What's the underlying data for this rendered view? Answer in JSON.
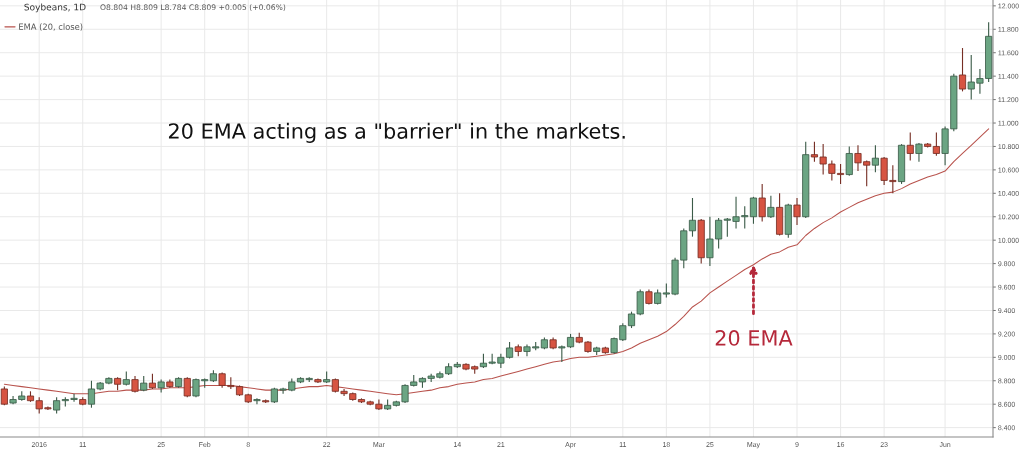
{
  "chart_data": {
    "type": "candlestick",
    "title": "Soybeans, 1D",
    "subtitle": "O8.804 H8.809 L8.784 C8.809 +0.005 (+0.06%)",
    "categories": [
      null,
      null,
      null,
      null,
      "2016",
      null,
      null,
      null,
      null,
      "11",
      null,
      null,
      null,
      null,
      null,
      null,
      null,
      null,
      "25",
      null,
      null,
      null,
      null,
      "Feb",
      null,
      null,
      null,
      null,
      "8",
      null,
      null,
      null,
      null,
      null,
      null,
      null,
      null,
      "22",
      null,
      null,
      null,
      null,
      null,
      "Mar",
      null,
      null,
      null,
      null,
      null,
      null,
      null,
      null,
      "14",
      null,
      null,
      null,
      null,
      "21",
      null,
      null,
      null,
      null,
      null,
      null,
      null,
      "Apr",
      null,
      null,
      null,
      null,
      null,
      "11",
      null,
      null,
      null,
      null,
      "18",
      null,
      null,
      null,
      null,
      "25",
      null,
      null,
      null,
      null,
      "May",
      null,
      null,
      null,
      null,
      "9",
      null,
      null,
      null,
      null,
      "16",
      null,
      null,
      null,
      null,
      "23",
      null,
      null,
      null,
      null,
      null,
      null,
      "Jun",
      null,
      null,
      null,
      null,
      null
    ],
    "ohlc": [
      [
        8.73,
        8.75,
        8.59,
        8.6
      ],
      [
        8.61,
        8.67,
        8.6,
        8.64
      ],
      [
        8.64,
        8.71,
        8.63,
        8.67
      ],
      [
        8.67,
        8.71,
        8.62,
        8.63
      ],
      [
        8.63,
        8.66,
        8.52,
        8.56
      ],
      [
        8.57,
        8.58,
        8.55,
        8.56
      ],
      [
        8.55,
        8.66,
        8.52,
        8.63
      ],
      [
        8.63,
        8.66,
        8.58,
        8.64
      ],
      [
        8.64,
        8.69,
        8.62,
        8.65
      ],
      [
        8.64,
        8.66,
        8.59,
        8.6
      ],
      [
        8.6,
        8.8,
        8.57,
        8.73
      ],
      [
        8.73,
        8.79,
        8.72,
        8.78
      ],
      [
        8.78,
        8.83,
        8.77,
        8.82
      ],
      [
        8.82,
        8.83,
        8.72,
        8.77
      ],
      [
        8.77,
        8.88,
        8.76,
        8.81
      ],
      [
        8.81,
        8.84,
        8.7,
        8.71
      ],
      [
        8.72,
        8.84,
        8.71,
        8.78
      ],
      [
        8.78,
        8.86,
        8.73,
        8.74
      ],
      [
        8.74,
        8.81,
        8.7,
        8.79
      ],
      [
        8.79,
        8.81,
        8.74,
        8.75
      ],
      [
        8.75,
        8.83,
        8.74,
        8.82
      ],
      [
        8.82,
        8.83,
        8.66,
        8.67
      ],
      [
        8.67,
        8.82,
        8.66,
        8.81
      ],
      [
        8.8,
        8.82,
        8.74,
        8.81
      ],
      [
        8.8,
        8.89,
        8.79,
        8.86
      ],
      [
        8.86,
        8.87,
        8.74,
        8.76
      ],
      [
        8.76,
        8.83,
        8.73,
        8.75
      ],
      [
        8.75,
        8.76,
        8.67,
        8.68
      ],
      [
        8.68,
        8.69,
        8.61,
        8.62
      ],
      [
        8.63,
        8.65,
        8.6,
        8.64
      ],
      [
        8.63,
        8.64,
        8.61,
        8.62
      ],
      [
        8.62,
        8.74,
        8.61,
        8.73
      ],
      [
        8.72,
        8.74,
        8.69,
        8.73
      ],
      [
        8.72,
        8.82,
        8.71,
        8.79
      ],
      [
        8.79,
        8.83,
        8.78,
        8.82
      ],
      [
        8.81,
        8.83,
        8.79,
        8.82
      ],
      [
        8.81,
        8.82,
        8.78,
        8.79
      ],
      [
        8.79,
        8.88,
        8.78,
        8.81
      ],
      [
        8.81,
        8.82,
        8.7,
        8.71
      ],
      [
        8.71,
        8.73,
        8.67,
        8.69
      ],
      [
        8.69,
        8.7,
        8.63,
        8.64
      ],
      [
        8.64,
        8.65,
        8.61,
        8.62
      ],
      [
        8.62,
        8.63,
        8.59,
        8.6
      ],
      [
        8.6,
        8.64,
        8.55,
        8.56
      ],
      [
        8.56,
        8.64,
        8.55,
        8.59
      ],
      [
        8.59,
        8.63,
        8.58,
        8.62
      ],
      [
        8.62,
        8.77,
        8.61,
        8.76
      ],
      [
        8.76,
        8.85,
        8.75,
        8.79
      ],
      [
        8.79,
        8.83,
        8.74,
        8.82
      ],
      [
        8.82,
        8.86,
        8.79,
        8.84
      ],
      [
        8.83,
        8.88,
        8.82,
        8.86
      ],
      [
        8.86,
        8.95,
        8.85,
        8.92
      ],
      [
        8.92,
        8.96,
        8.91,
        8.94
      ],
      [
        8.94,
        8.95,
        8.89,
        8.9
      ],
      [
        8.92,
        8.93,
        8.86,
        8.9
      ],
      [
        8.92,
        9.03,
        8.91,
        8.95
      ],
      [
        8.95,
        9.03,
        8.94,
        8.96
      ],
      [
        8.95,
        9.03,
        8.91,
        9.0
      ],
      [
        9.0,
        9.13,
        8.99,
        9.08
      ],
      [
        9.09,
        9.11,
        9.01,
        9.05
      ],
      [
        9.05,
        9.11,
        9.01,
        9.09
      ],
      [
        9.08,
        9.13,
        9.06,
        9.09
      ],
      [
        9.08,
        9.17,
        9.07,
        9.15
      ],
      [
        9.15,
        9.17,
        9.07,
        9.08
      ],
      [
        9.08,
        9.1,
        8.96,
        9.09
      ],
      [
        9.09,
        9.2,
        9.08,
        9.17
      ],
      [
        9.17,
        9.21,
        9.12,
        9.13
      ],
      [
        9.13,
        9.14,
        9.04,
        9.05
      ],
      [
        9.05,
        9.09,
        9.02,
        9.08
      ],
      [
        9.08,
        9.09,
        9.03,
        9.04
      ],
      [
        9.04,
        9.17,
        9.03,
        9.16
      ],
      [
        9.15,
        9.29,
        9.14,
        9.27
      ],
      [
        9.27,
        9.39,
        9.25,
        9.37
      ],
      [
        9.37,
        9.58,
        9.36,
        9.56
      ],
      [
        9.56,
        9.58,
        9.45,
        9.46
      ],
      [
        9.46,
        9.58,
        9.45,
        9.55
      ],
      [
        9.54,
        9.63,
        9.51,
        9.55
      ],
      [
        9.54,
        9.85,
        9.53,
        9.83
      ],
      [
        9.83,
        10.1,
        9.76,
        10.08
      ],
      [
        10.08,
        10.36,
        10.03,
        10.17
      ],
      [
        10.17,
        10.18,
        9.8,
        9.85
      ],
      [
        9.85,
        10.2,
        9.78,
        10.01
      ],
      [
        10.01,
        10.19,
        9.93,
        10.17
      ],
      [
        10.17,
        10.19,
        10.03,
        10.18
      ],
      [
        10.16,
        10.37,
        10.1,
        10.2
      ],
      [
        10.2,
        10.29,
        10.1,
        10.21
      ],
      [
        10.2,
        10.37,
        10.14,
        10.36
      ],
      [
        10.36,
        10.48,
        10.16,
        10.2
      ],
      [
        10.2,
        10.38,
        10.19,
        10.28
      ],
      [
        10.28,
        10.4,
        10.04,
        10.05
      ],
      [
        10.05,
        10.31,
        10.02,
        10.3
      ],
      [
        10.3,
        10.36,
        10.13,
        10.2
      ],
      [
        10.2,
        10.84,
        10.19,
        10.73
      ],
      [
        10.73,
        10.84,
        10.67,
        10.71
      ],
      [
        10.71,
        10.82,
        10.56,
        10.65
      ],
      [
        10.65,
        10.68,
        10.51,
        10.57
      ],
      [
        10.57,
        10.65,
        10.48,
        10.56
      ],
      [
        10.56,
        10.8,
        10.55,
        10.74
      ],
      [
        10.74,
        10.81,
        10.59,
        10.66
      ],
      [
        10.67,
        10.68,
        10.46,
        10.64
      ],
      [
        10.64,
        10.81,
        10.58,
        10.7
      ],
      [
        10.7,
        10.71,
        10.47,
        10.51
      ],
      [
        10.51,
        10.64,
        10.4,
        10.5
      ],
      [
        10.5,
        10.82,
        10.48,
        10.81
      ],
      [
        10.81,
        10.92,
        10.68,
        10.74
      ],
      [
        10.74,
        10.83,
        10.67,
        10.82
      ],
      [
        10.82,
        10.83,
        10.79,
        10.8
      ],
      [
        10.8,
        10.92,
        10.72,
        10.74
      ],
      [
        10.74,
        10.97,
        10.64,
        10.95
      ],
      [
        10.95,
        11.42,
        10.93,
        11.4
      ],
      [
        11.41,
        11.64,
        11.27,
        11.29
      ],
      [
        11.29,
        11.58,
        11.2,
        11.35
      ],
      [
        11.34,
        11.46,
        11.25,
        11.38
      ],
      [
        11.38,
        11.86,
        11.35,
        11.74
      ]
    ],
    "colors": [
      "#d75442",
      "#6ba583",
      "#6ba583",
      "#d75442",
      "#d75442",
      "#d75442",
      "#6ba583",
      "#6ba583",
      "#6ba583",
      "#d75442",
      "#6ba583",
      "#6ba583",
      "#6ba583",
      "#d75442",
      "#6ba583",
      "#d75442",
      "#6ba583",
      "#d75442",
      "#6ba583",
      "#d75442",
      "#6ba583",
      "#d75442",
      "#6ba583",
      "#6ba583",
      "#6ba583",
      "#d75442",
      "#d75442",
      "#d75442",
      "#d75442",
      "#6ba583",
      "#d75442",
      "#6ba583",
      "#6ba583",
      "#6ba583",
      "#6ba583",
      "#6ba583",
      "#d75442",
      "#6ba583",
      "#d75442",
      "#d75442",
      "#d75442",
      "#d75442",
      "#d75442",
      "#d75442",
      "#6ba583",
      "#6ba583",
      "#6ba583",
      "#6ba583",
      "#6ba583",
      "#6ba583",
      "#6ba583",
      "#6ba583",
      "#6ba583",
      "#d75442",
      "#d75442",
      "#6ba583",
      "#6ba583",
      "#6ba583",
      "#6ba583",
      "#d75442",
      "#6ba583",
      "#6ba583",
      "#6ba583",
      "#d75442",
      "#6ba583",
      "#6ba583",
      "#d75442",
      "#d75442",
      "#6ba583",
      "#d75442",
      "#6ba583",
      "#6ba583",
      "#6ba583",
      "#6ba583",
      "#d75442",
      "#6ba583",
      "#6ba583",
      "#6ba583",
      "#6ba583",
      "#6ba583",
      "#d75442",
      "#6ba583",
      "#6ba583",
      "#6ba583",
      "#6ba583",
      "#6ba583",
      "#6ba583",
      "#d75442",
      "#6ba583",
      "#d75442",
      "#6ba583",
      "#d75442",
      "#6ba583",
      "#d75442",
      "#d75442",
      "#d75442",
      "#d75442",
      "#6ba583",
      "#d75442",
      "#d75442",
      "#6ba583",
      "#d75442",
      "#d75442",
      "#6ba583",
      "#d75442",
      "#6ba583",
      "#d75442",
      "#d75442",
      "#6ba583",
      "#6ba583",
      "#d75442",
      "#6ba583",
      "#6ba583",
      "#6ba583"
    ],
    "series": [
      {
        "name": "EMA (20, close)",
        "type": "line",
        "color": "#b8524c",
        "values": [
          8.77,
          8.76,
          8.75,
          8.74,
          8.73,
          8.72,
          8.71,
          8.7,
          8.69,
          8.69,
          8.69,
          8.7,
          8.71,
          8.71,
          8.72,
          8.72,
          8.72,
          8.73,
          8.73,
          8.74,
          8.74,
          8.74,
          8.75,
          8.76,
          8.76,
          8.76,
          8.76,
          8.75,
          8.74,
          8.73,
          8.72,
          8.72,
          8.72,
          8.73,
          8.74,
          8.75,
          8.75,
          8.76,
          8.75,
          8.74,
          8.73,
          8.72,
          8.71,
          8.7,
          8.69,
          8.68,
          8.69,
          8.7,
          8.71,
          8.72,
          8.74,
          8.75,
          8.77,
          8.78,
          8.79,
          8.81,
          8.82,
          8.84,
          8.86,
          8.88,
          8.9,
          8.92,
          8.94,
          8.96,
          8.97,
          8.99,
          9.0,
          9.0,
          9.01,
          9.02,
          9.03,
          9.05,
          9.08,
          9.12,
          9.15,
          9.18,
          9.22,
          9.28,
          9.35,
          9.43,
          9.48,
          9.55,
          9.6,
          9.65,
          9.7,
          9.75,
          9.79,
          9.84,
          9.88,
          9.9,
          9.94,
          9.96,
          10.04,
          10.1,
          10.15,
          10.19,
          10.24,
          10.28,
          10.32,
          10.35,
          10.38,
          10.4,
          10.41,
          10.44,
          10.48,
          10.51,
          10.54,
          10.56,
          10.59,
          10.67,
          10.74,
          10.81,
          10.88,
          10.95
        ]
      }
    ],
    "ylim": [
      8.32,
      12.05
    ],
    "yticks": [
      {
        "value": 8.4,
        "label": "8.400"
      },
      {
        "value": 8.6,
        "label": "8.600"
      },
      {
        "value": 8.8,
        "label": "8.800"
      },
      {
        "value": 9.0,
        "label": "9.000"
      },
      {
        "value": 9.2,
        "label": "9.200"
      },
      {
        "value": 9.4,
        "label": "9.400"
      },
      {
        "value": 9.6,
        "label": "9.600"
      },
      {
        "value": 9.8,
        "label": "9.800"
      },
      {
        "value": 10.0,
        "label": "10.000"
      },
      {
        "value": 10.2,
        "label": "10.200"
      },
      {
        "value": 10.4,
        "label": "10.400"
      },
      {
        "value": 10.6,
        "label": "10.600"
      },
      {
        "value": 10.8,
        "label": "10.800"
      },
      {
        "value": 11.0,
        "label": "11.000"
      },
      {
        "value": 11.2,
        "label": "11.200"
      },
      {
        "value": 11.4,
        "label": "11.400"
      },
      {
        "value": 11.6,
        "label": "11.600"
      },
      {
        "value": 11.8,
        "label": "11.800"
      },
      {
        "value": 12.0,
        "label": "12.000"
      }
    ],
    "grid": true,
    "legend": "top left",
    "annotations": [
      "20 EMA acting as a \"barrier\" in the markets.",
      {
        "text": "20 EMA",
        "x": "May",
        "y": 9.79
      }
    ]
  }
}
